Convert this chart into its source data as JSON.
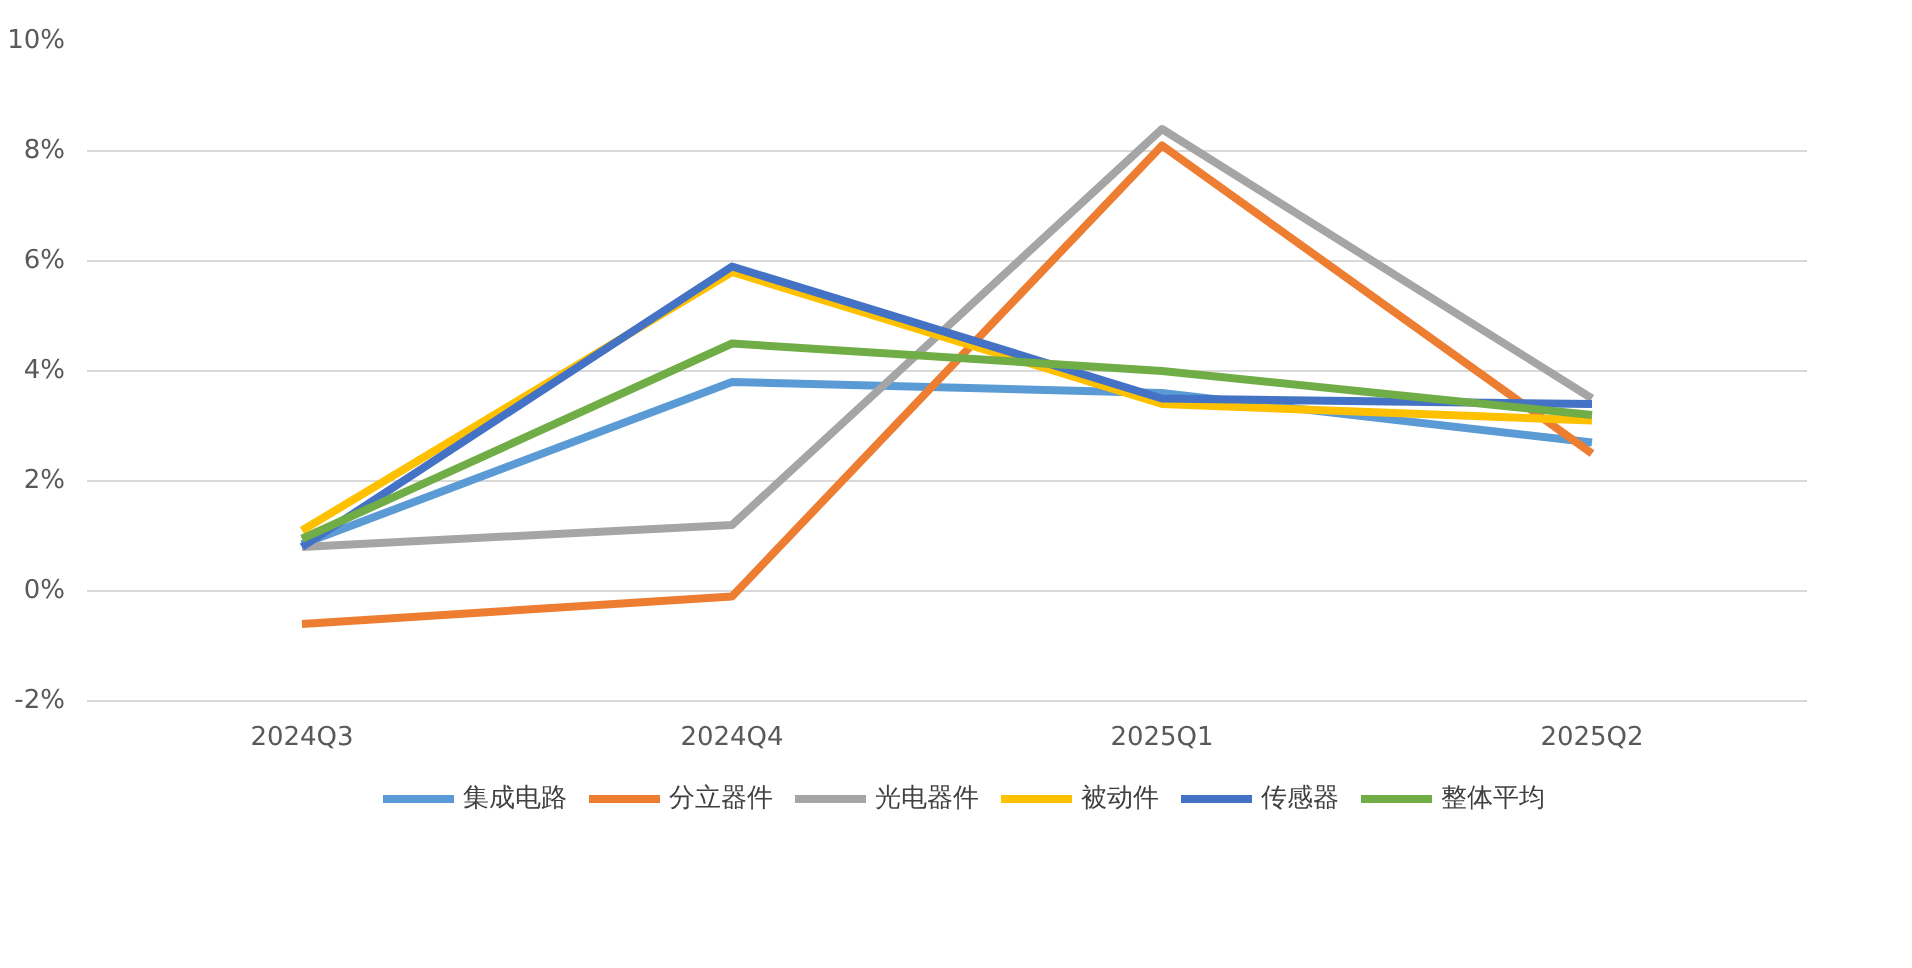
{
  "chart_data": {
    "type": "line",
    "categories": [
      "2024Q3",
      "2024Q4",
      "2025Q1",
      "2025Q2"
    ],
    "series": [
      {
        "name": "集成电路",
        "color": "#5b9bd5",
        "values": [
          0.85,
          3.8,
          3.6,
          2.7
        ]
      },
      {
        "name": "分立器件",
        "color": "#ed7d31",
        "values": [
          -0.6,
          -0.1,
          8.1,
          2.5
        ]
      },
      {
        "name": "光电器件",
        "color": "#a5a5a5",
        "values": [
          0.8,
          1.2,
          8.4,
          3.5
        ]
      },
      {
        "name": "被动件",
        "color": "#ffc000",
        "values": [
          1.1,
          5.8,
          3.4,
          3.1
        ]
      },
      {
        "name": "传感器",
        "color": "#4472c4",
        "values": [
          0.8,
          5.9,
          3.5,
          3.4
        ]
      },
      {
        "name": "整体平均",
        "color": "#70ad47",
        "values": [
          0.95,
          4.5,
          4.0,
          3.2
        ]
      }
    ],
    "ylim": [
      -2,
      10
    ],
    "yticks": [
      {
        "value": -2,
        "label": "-2%"
      },
      {
        "value": 0,
        "label": "0%"
      },
      {
        "value": 2,
        "label": "2%"
      },
      {
        "value": 4,
        "label": "4%"
      },
      {
        "value": 6,
        "label": "6%"
      },
      {
        "value": 8,
        "label": "8%"
      },
      {
        "value": 10,
        "label": "10%"
      }
    ],
    "grid": "y",
    "legend": "bottom",
    "marker": "none",
    "line_style": "solid"
  }
}
